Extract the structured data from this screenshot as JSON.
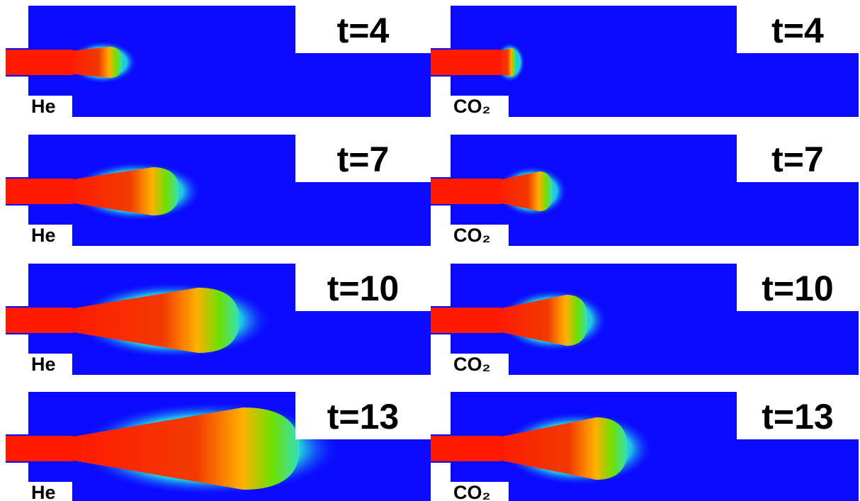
{
  "panels": [
    {
      "time": "t=4",
      "gas": "He"
    },
    {
      "time": "t=4",
      "gas": "CO₂"
    },
    {
      "time": "t=7",
      "gas": "He"
    },
    {
      "time": "t=7",
      "gas": "CO₂"
    },
    {
      "time": "t=10",
      "gas": "He"
    },
    {
      "time": "t=10",
      "gas": "CO₂"
    },
    {
      "time": "t=13",
      "gas": "He"
    },
    {
      "time": "t=13",
      "gas": "CO₂"
    }
  ]
}
